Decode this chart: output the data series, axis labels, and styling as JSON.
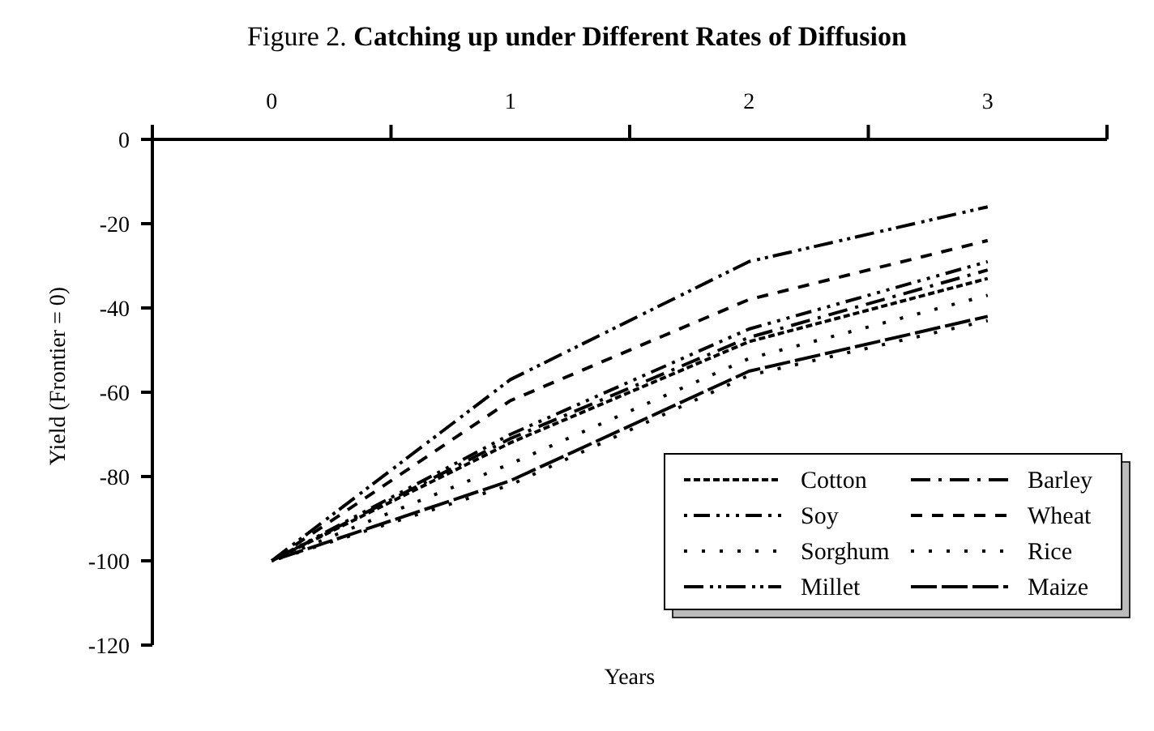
{
  "chart_data": {
    "type": "line",
    "title": "Figure 2. Catching up under Different Rates of Diffusion",
    "xlabel": "Years",
    "ylabel": "Yield (Frontier = 0)",
    "categories": [
      "0",
      "1",
      "2",
      "3"
    ],
    "ylim": [
      -120,
      0
    ],
    "yticks": [
      0,
      -20,
      -40,
      -60,
      -80,
      -100,
      -120
    ],
    "grid": false,
    "legend": "bottom right",
    "marker": "none",
    "series": [
      {
        "name": "Cotton",
        "color": "#000000",
        "line_style": "dashed",
        "values": [
          -100,
          -72,
          -48,
          -33
        ]
      },
      {
        "name": "Soy",
        "color": "#000000",
        "line_style": "dashed",
        "values": [
          -100,
          -70,
          -45,
          -29
        ]
      },
      {
        "name": "Sorghum",
        "color": "#000000",
        "line_style": "dotted",
        "values": [
          -100,
          -77,
          -52,
          -37
        ]
      },
      {
        "name": "Millet",
        "color": "#000000",
        "line_style": "dashed",
        "values": [
          -100,
          -57,
          -29,
          -16
        ]
      },
      {
        "name": "Barley",
        "color": "#000000",
        "line_style": "dashed",
        "values": [
          -100,
          -71,
          -47,
          -31
        ]
      },
      {
        "name": "Wheat",
        "color": "#000000",
        "line_style": "dashed",
        "values": [
          -100,
          -62,
          -38,
          -24
        ]
      },
      {
        "name": "Rice",
        "color": "#000000",
        "line_style": "dotted",
        "values": [
          -100,
          -82,
          -56,
          -43
        ]
      },
      {
        "name": "Maize",
        "color": "#000000",
        "line_style": "dashed",
        "values": [
          -100,
          -81,
          -55,
          -42
        ]
      }
    ]
  }
}
